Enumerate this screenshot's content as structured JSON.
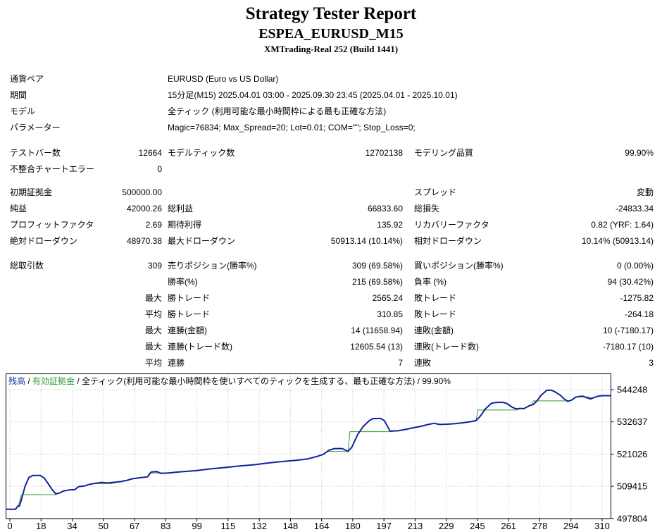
{
  "header": {
    "title": "Strategy Tester Report",
    "symbol_line": "ESPEA_EURUSD_M15",
    "server_line": "XMTrading-Real 252 (Build 1441)"
  },
  "report": {
    "rows": [
      {
        "l1": "通貨ペア",
        "v": "EURUSD (Euro vs US Dollar)"
      },
      {
        "l1": "期間",
        "v": "15分足(M15) 2025.04.01 03:00 - 2025.09.30 23:45 (2025.04.01 - 2025.10.01)"
      },
      {
        "l1": "モデル",
        "v": "全ティック (利用可能な最小時間枠による最も正確な方法)"
      },
      {
        "l1": "パラメーター",
        "v": "Magic=76834; Max_Spread=20; Lot=0.01; COM=\"\"; Stop_Loss=0;"
      },
      {
        "gap": 13,
        "l1": "テストバー数",
        "v1": "12664",
        "l2": "モデルティック数",
        "v2": "12702138",
        "l3": "モデリング品質",
        "v3": "99.90%"
      },
      {
        "l1": "不整合チャートエラー",
        "v1": "0",
        "l2": "",
        "v2": "",
        "l3": "",
        "v3": ""
      },
      {
        "gap": 10,
        "l1": "初期証拠金",
        "v1": "500000.00",
        "l2": "",
        "v2": "",
        "l3": "スプレッド",
        "v3": "変動"
      },
      {
        "l1": "純益",
        "v1": "42000.26",
        "l2": "総利益",
        "v2": "66833.60",
        "l3": "総損失",
        "v3": "-24833.34"
      },
      {
        "l1": "プロフィットファクタ",
        "v1": "2.69",
        "l2": "期待利得",
        "v2": "135.92",
        "l3": "リカバリーファクタ",
        "v3": "0.82 (YRF: 1.64)"
      },
      {
        "l1": "絶対ドローダウン",
        "v1": "48970.38",
        "l2": "最大ドローダウン",
        "v2": "50913.14 (10.14%)",
        "l3": "相対ドローダウン",
        "v3": "10.14% (50913.14)"
      },
      {
        "gap": 12,
        "l1": "総取引数",
        "v1": "309",
        "l2": "売りポジション(勝率%)",
        "v2": "309 (69.58%)",
        "l3": "買いポジション(勝率%)",
        "v3": "0 (0.00%)"
      },
      {
        "l1": "",
        "v1": "",
        "l2": "勝率(%)",
        "v2": "215 (69.58%)",
        "l3": "負率 (%)",
        "v3": "94 (30.42%)"
      },
      {
        "l1": "",
        "v1": "最大",
        "l2": "勝トレード",
        "v2": "2565.24",
        "l3": "敗トレード",
        "v3": "-1275.82"
      },
      {
        "l1": "",
        "v1": "平均",
        "l2": "勝トレード",
        "v2": "310.85",
        "l3": "敗トレード",
        "v3": "-264.18"
      },
      {
        "l1": "",
        "v1": "最大",
        "l2": "連勝(金額)",
        "v2": "14 (11658.94)",
        "l3": "連敗(金額)",
        "v3": "10 (-7180.17)"
      },
      {
        "l1": "",
        "v1": "最大",
        "l2": "連勝(トレード数)",
        "v2": "12605.54 (13)",
        "l3": "連敗(トレード数)",
        "v3": "-7180.17 (10)"
      },
      {
        "l1": "",
        "v1": "平均",
        "l2": "連勝",
        "v2": "7",
        "l3": "連敗",
        "v3": "3"
      }
    ]
  },
  "chart": {
    "legend": {
      "balance_label": "残高",
      "equity_label": "有効証拠金",
      "model_desc": "全ティック(利用可能な最小時間枠を使いすべてのティックを生成する、最も正確な方法)",
      "quality": "99.90%",
      "separator": " / "
    },
    "colors": {
      "balance": "#131f9e",
      "equity": "#2f9e2f",
      "grid": "#c6c6c6",
      "border": "#000000",
      "legend_balance": "#1a2fae",
      "legend_equity": "#2f9e2f"
    }
  },
  "chart_data": {
    "type": "line",
    "title": "残高 / 有効証拠金 / 全ティック(利用可能な最小時間枠を使いすべてのティックを生成する、最も正確な方法) / 99.90%",
    "x_ticks": [
      0,
      18,
      34,
      50,
      67,
      83,
      99,
      115,
      132,
      148,
      164,
      180,
      197,
      213,
      229,
      245,
      261,
      278,
      294,
      310
    ],
    "y_ticks": [
      544248,
      532637,
      521026,
      509415,
      497804
    ],
    "xlim": [
      0,
      310
    ],
    "ylim": [
      497804,
      544248
    ],
    "grid": true,
    "legend_position": "top-left",
    "series": [
      {
        "name": "残高",
        "color": "#131f9e",
        "points": [
          [
            0,
            501100
          ],
          [
            3,
            501100
          ],
          [
            4,
            502200
          ],
          [
            5,
            502300
          ],
          [
            6,
            504500
          ],
          [
            8,
            509500
          ],
          [
            10,
            512600
          ],
          [
            12,
            513300
          ],
          [
            16,
            513300
          ],
          [
            18,
            512400
          ],
          [
            20,
            510400
          ],
          [
            22,
            508300
          ],
          [
            24,
            506700
          ],
          [
            26,
            507000
          ],
          [
            28,
            507700
          ],
          [
            31,
            508100
          ],
          [
            34,
            508200
          ],
          [
            36,
            509300
          ],
          [
            39,
            509500
          ],
          [
            41,
            510000
          ],
          [
            44,
            510400
          ],
          [
            48,
            510800
          ],
          [
            51,
            510600
          ],
          [
            54,
            510800
          ],
          [
            58,
            511100
          ],
          [
            61,
            511500
          ],
          [
            64,
            512100
          ],
          [
            68,
            512500
          ],
          [
            72,
            512800
          ],
          [
            74,
            514600
          ],
          [
            77,
            514700
          ],
          [
            79,
            514100
          ],
          [
            83,
            514200
          ],
          [
            87,
            514500
          ],
          [
            91,
            514700
          ],
          [
            98,
            515100
          ],
          [
            105,
            515700
          ],
          [
            113,
            516200
          ],
          [
            120,
            516700
          ],
          [
            128,
            517200
          ],
          [
            135,
            517800
          ],
          [
            142,
            518300
          ],
          [
            150,
            518800
          ],
          [
            156,
            519300
          ],
          [
            160,
            520000
          ],
          [
            164,
            520900
          ],
          [
            167,
            522400
          ],
          [
            170,
            523000
          ],
          [
            174,
            523000
          ],
          [
            177,
            522000
          ],
          [
            179,
            523500
          ],
          [
            182,
            528000
          ],
          [
            185,
            531000
          ],
          [
            188,
            533000
          ],
          [
            190,
            533800
          ],
          [
            194,
            533900
          ],
          [
            196,
            533100
          ],
          [
            199,
            529300
          ],
          [
            203,
            529400
          ],
          [
            207,
            529900
          ],
          [
            211,
            530500
          ],
          [
            215,
            531000
          ],
          [
            219,
            531700
          ],
          [
            222,
            532100
          ],
          [
            225,
            531700
          ],
          [
            229,
            531800
          ],
          [
            233,
            532000
          ],
          [
            237,
            532300
          ],
          [
            241,
            532700
          ],
          [
            244,
            533100
          ],
          [
            246,
            534500
          ],
          [
            249,
            537400
          ],
          [
            252,
            539300
          ],
          [
            254,
            539600
          ],
          [
            258,
            539700
          ],
          [
            260,
            539300
          ],
          [
            263,
            537900
          ],
          [
            265,
            537300
          ],
          [
            267,
            537500
          ],
          [
            269,
            537400
          ],
          [
            272,
            538500
          ],
          [
            274,
            538900
          ],
          [
            276,
            540300
          ],
          [
            278,
            542200
          ],
          [
            281,
            544000
          ],
          [
            283,
            544100
          ],
          [
            285,
            543600
          ],
          [
            288,
            542300
          ],
          [
            290,
            541000
          ],
          [
            292,
            540000
          ],
          [
            294,
            540500
          ],
          [
            296,
            541500
          ],
          [
            298,
            541800
          ],
          [
            300,
            541900
          ],
          [
            302,
            541300
          ],
          [
            304,
            540900
          ],
          [
            306,
            541500
          ],
          [
            308,
            541900
          ],
          [
            310,
            542100
          ]
        ]
      },
      {
        "name": "有効証拠金",
        "color": "#2f9e2f",
        "points": [
          [
            0,
            501100
          ],
          [
            3,
            501100
          ],
          [
            4,
            502200
          ],
          [
            5,
            503500
          ],
          [
            6,
            506400
          ],
          [
            24,
            506400
          ],
          [
            26,
            507000
          ],
          [
            28,
            507700
          ],
          [
            31,
            508100
          ],
          [
            34,
            508200
          ],
          [
            36,
            509300
          ],
          [
            39,
            509500
          ],
          [
            41,
            510000
          ],
          [
            44,
            510400
          ],
          [
            53,
            510400
          ],
          [
            58,
            511100
          ],
          [
            61,
            511500
          ],
          [
            64,
            512100
          ],
          [
            68,
            512500
          ],
          [
            72,
            512800
          ],
          [
            73,
            514200
          ],
          [
            79,
            514200
          ],
          [
            83,
            514200
          ],
          [
            87,
            514500
          ],
          [
            91,
            514700
          ],
          [
            98,
            515100
          ],
          [
            105,
            515700
          ],
          [
            113,
            516200
          ],
          [
            120,
            516700
          ],
          [
            128,
            517200
          ],
          [
            135,
            517800
          ],
          [
            142,
            518300
          ],
          [
            150,
            518800
          ],
          [
            156,
            519300
          ],
          [
            160,
            520000
          ],
          [
            164,
            520900
          ],
          [
            166,
            522000
          ],
          [
            177,
            522000
          ],
          [
            178,
            529100
          ],
          [
            199,
            529100
          ],
          [
            203,
            529400
          ],
          [
            207,
            529900
          ],
          [
            211,
            530500
          ],
          [
            215,
            531000
          ],
          [
            219,
            531700
          ],
          [
            222,
            532100
          ],
          [
            226,
            531700
          ],
          [
            229,
            531800
          ],
          [
            233,
            532000
          ],
          [
            237,
            532300
          ],
          [
            241,
            532700
          ],
          [
            244,
            533100
          ],
          [
            245,
            536900
          ],
          [
            265,
            536900
          ],
          [
            267,
            537300
          ],
          [
            270,
            537700
          ],
          [
            273,
            538600
          ],
          [
            274,
            540200
          ],
          [
            291,
            540200
          ],
          [
            293,
            540300
          ],
          [
            295,
            540900
          ],
          [
            296,
            541600
          ],
          [
            303,
            541600
          ],
          [
            305,
            541200
          ],
          [
            306,
            541500
          ],
          [
            308,
            541900
          ],
          [
            310,
            542100
          ]
        ]
      }
    ],
    "final_balance": 542000.26
  }
}
